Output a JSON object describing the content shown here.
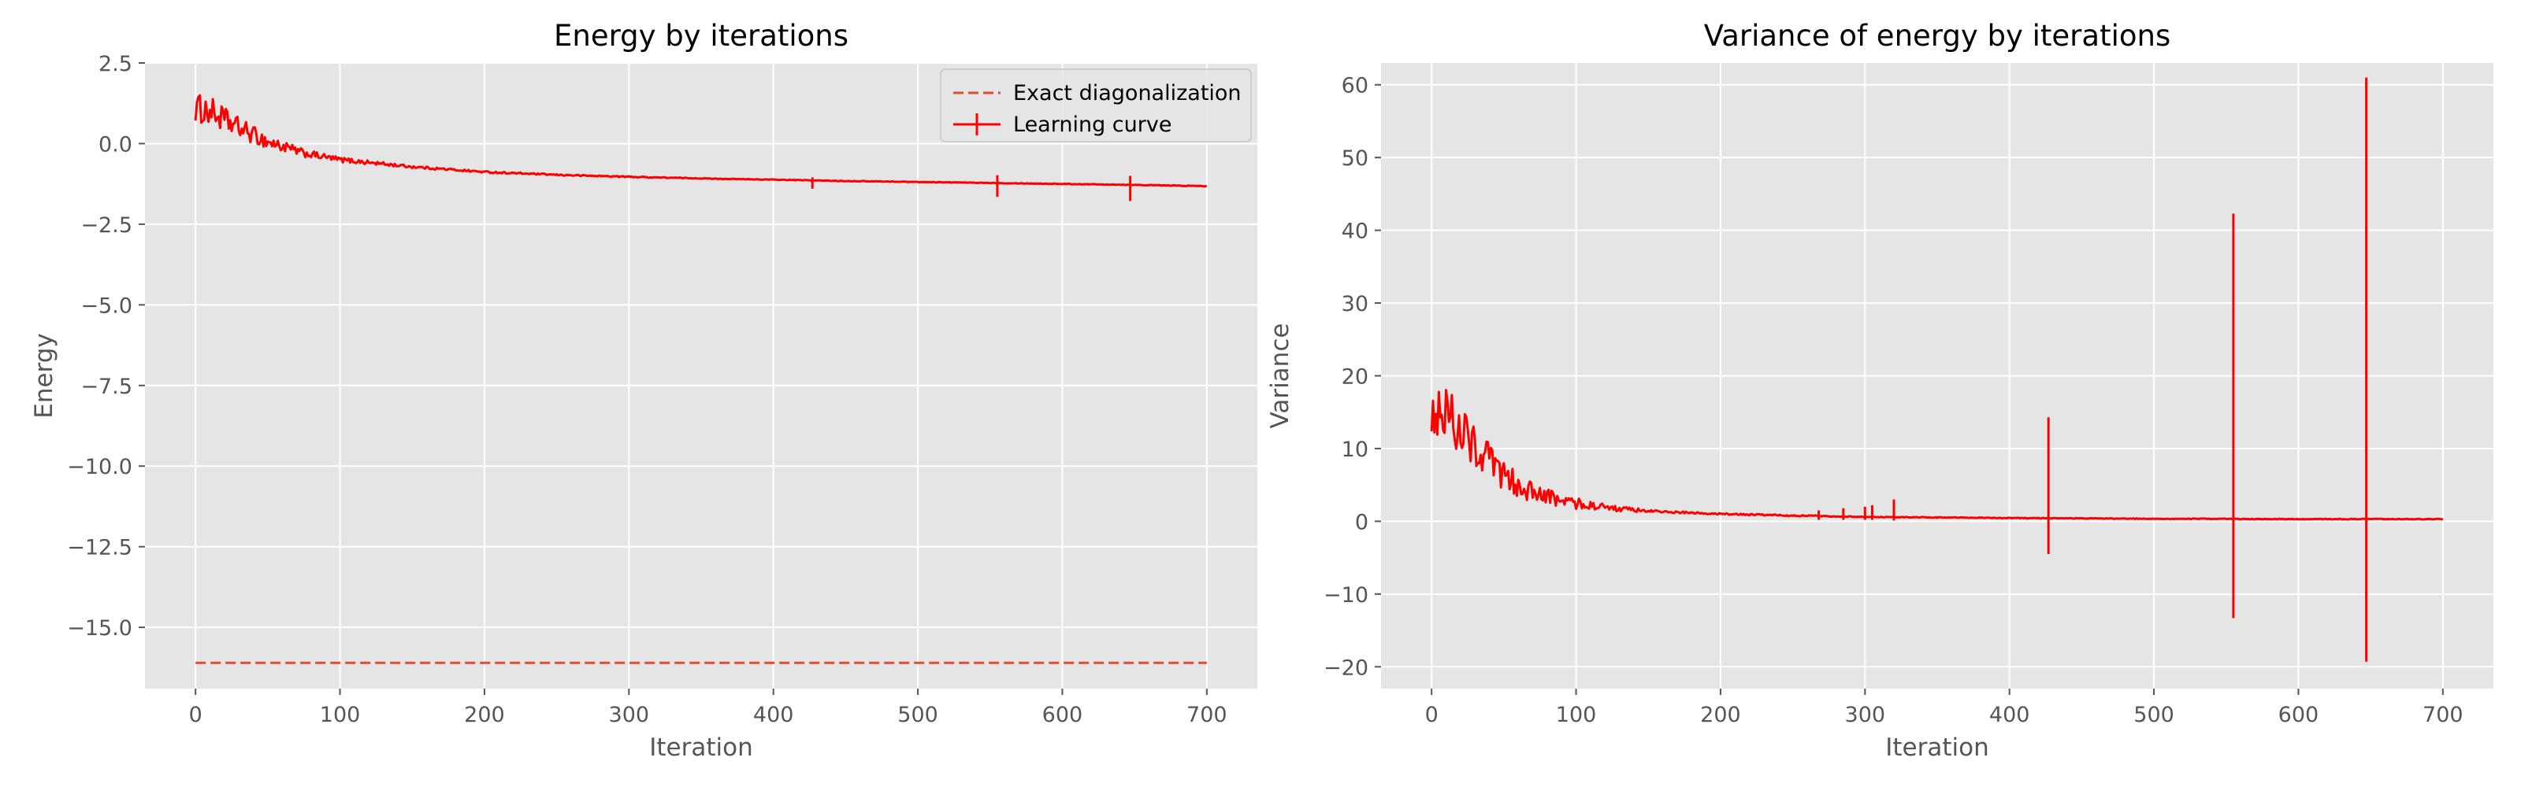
{
  "chart_data": [
    {
      "type": "line",
      "title": "Energy by iterations",
      "xlabel": "Iteration",
      "ylabel": "Energy",
      "xlim": [
        -35,
        735
      ],
      "ylim": [
        -16.9,
        2.5
      ],
      "xticks": [
        0,
        100,
        200,
        300,
        400,
        500,
        600,
        700
      ],
      "xtick_labels": [
        "0",
        "100",
        "200",
        "300",
        "400",
        "500",
        "600",
        "700"
      ],
      "yticks": [
        2.5,
        0.0,
        -2.5,
        -5.0,
        -7.5,
        -10.0,
        -12.5,
        -15.0
      ],
      "ytick_labels": [
        "2.5",
        "0.0",
        "−2.5",
        "−5.0",
        "−7.5",
        "−10.0",
        "−12.5",
        "−15.0"
      ],
      "grid": true,
      "legend": "upper right",
      "series": [
        {
          "name": "Exact diagonalization",
          "style": "dashed",
          "color": "#e24a33",
          "x": [
            0,
            700
          ],
          "y": [
            -16.1,
            -16.1
          ]
        },
        {
          "name": "Learning curve",
          "style": "solid",
          "color": "#ff0000",
          "x": [
            0,
            10,
            25,
            50,
            75,
            100,
            150,
            200,
            250,
            300,
            350,
            400,
            450,
            500,
            550,
            600,
            650,
            700
          ],
          "y": [
            1.1,
            1.0,
            0.6,
            0.05,
            -0.3,
            -0.5,
            -0.72,
            -0.88,
            -0.97,
            -1.03,
            -1.08,
            -1.12,
            -1.16,
            -1.19,
            -1.22,
            -1.25,
            -1.28,
            -1.32
          ],
          "noise": [
            0.45,
            0.45,
            0.35,
            0.22,
            0.12,
            0.08,
            0.04,
            0.03,
            0.02,
            0.02,
            0.01,
            0.01,
            0.01,
            0.01,
            0.01,
            0.01,
            0.01,
            0.01
          ],
          "errorbars": [
            {
              "x": 427,
              "low": -1.4,
              "high": -1.05
            },
            {
              "x": 555,
              "low": -1.65,
              "high": -0.98
            },
            {
              "x": 647,
              "low": -1.78,
              "high": -1.0
            }
          ]
        }
      ]
    },
    {
      "type": "line",
      "title": "Variance of energy by iterations",
      "xlabel": "Iteration",
      "ylabel": "Variance",
      "xlim": [
        -35,
        735
      ],
      "ylim": [
        -23,
        63
      ],
      "xticks": [
        0,
        100,
        200,
        300,
        400,
        500,
        600,
        700
      ],
      "xtick_labels": [
        "0",
        "100",
        "200",
        "300",
        "400",
        "500",
        "600",
        "700"
      ],
      "yticks": [
        60,
        50,
        40,
        30,
        20,
        10,
        0,
        -10,
        -20
      ],
      "ytick_labels": [
        "60",
        "50",
        "40",
        "30",
        "20",
        "10",
        "0",
        "−10",
        "−20"
      ],
      "grid": true,
      "series": [
        {
          "style": "solid",
          "color": "#ff0000",
          "x": [
            0,
            10,
            25,
            50,
            75,
            100,
            125,
            150,
            200,
            250,
            300,
            400,
            500,
            600,
            700
          ],
          "y": [
            15.5,
            15.0,
            11.5,
            6.0,
            3.5,
            2.5,
            1.8,
            1.4,
            1.0,
            0.8,
            0.6,
            0.45,
            0.35,
            0.3,
            0.3
          ],
          "noise": [
            4.0,
            4.0,
            3.5,
            2.2,
            1.2,
            0.8,
            0.4,
            0.2,
            0.1,
            0.1,
            0.05,
            0.05,
            0.05,
            0.05,
            0.05
          ],
          "spikes": [
            {
              "x": 268,
              "low": 0.2,
              "high": 1.5
            },
            {
              "x": 285,
              "low": 0.2,
              "high": 1.8
            },
            {
              "x": 300,
              "low": 0.2,
              "high": 2.0
            },
            {
              "x": 305,
              "low": 0.2,
              "high": 2.2
            },
            {
              "x": 320,
              "low": 0.1,
              "high": 3.0
            },
            {
              "x": 427,
              "low": -4.5,
              "high": 14.3
            },
            {
              "x": 555,
              "low": -13.3,
              "high": 42.3
            },
            {
              "x": 647,
              "low": -19.3,
              "high": 61.0
            }
          ]
        }
      ]
    }
  ]
}
